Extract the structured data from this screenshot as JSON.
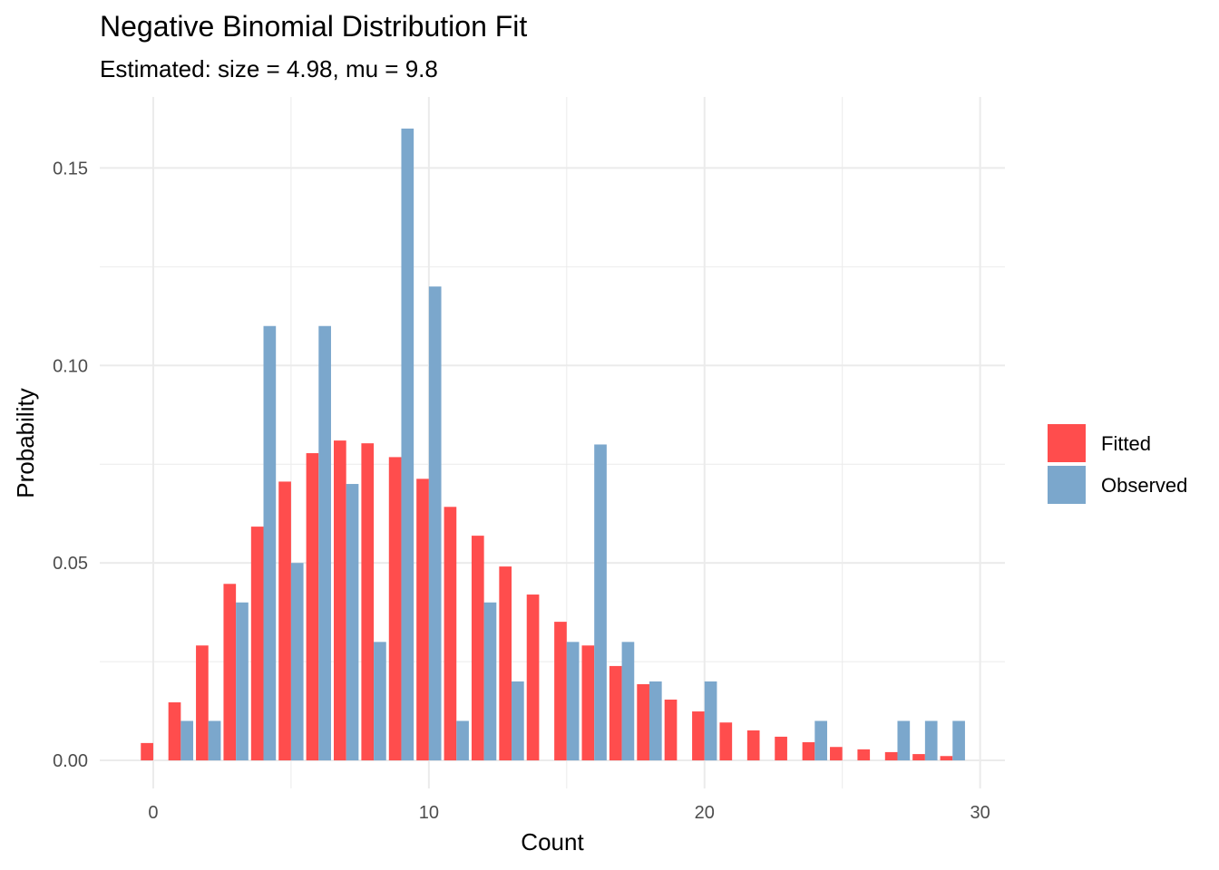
{
  "chart_data": {
    "type": "bar",
    "title": "Negative Binomial Distribution Fit",
    "subtitle": "Estimated: size = 4.98, mu = 9.8",
    "xlabel": "Count",
    "ylabel": "Probability",
    "xlim": [
      -1.94,
      30.9
    ],
    "ylim": [
      -0.0071,
      0.168
    ],
    "x_ticks": [
      0,
      10,
      20,
      30
    ],
    "x_tick_labels": [
      "0",
      "10",
      "20",
      "30"
    ],
    "y_ticks": [
      0,
      0.05,
      0.1,
      0.15
    ],
    "y_tick_labels": [
      "0.00",
      "0.05",
      "0.10",
      "0.15"
    ],
    "grid": true,
    "legend_position": "right",
    "series": [
      {
        "name": "Fitted",
        "color": "#FF4D4D",
        "x": [
          0,
          1,
          2,
          3,
          4,
          5,
          6,
          7,
          8,
          9,
          10,
          11,
          12,
          13,
          14,
          15,
          16,
          17,
          18,
          19,
          20,
          21,
          22,
          23,
          24,
          25,
          26,
          27,
          28,
          29
        ],
        "values": [
          0.0044,
          0.0147,
          0.0291,
          0.0447,
          0.0592,
          0.0706,
          0.0778,
          0.081,
          0.0803,
          0.0768,
          0.0713,
          0.0642,
          0.0569,
          0.0491,
          0.042,
          0.0351,
          0.0291,
          0.0239,
          0.0193,
          0.0154,
          0.0124,
          0.0096,
          0.0076,
          0.006,
          0.0046,
          0.0034,
          0.0028,
          0.0021,
          0.0016,
          0.0011
        ]
      },
      {
        "name": "Observed",
        "color": "#7BA7CC",
        "x": [
          1,
          2,
          3,
          4,
          5,
          6,
          7,
          8,
          9,
          10,
          11,
          12,
          13,
          15,
          16,
          17,
          18,
          20,
          24,
          27,
          28,
          29
        ],
        "values": [
          0.01,
          0.01,
          0.04,
          0.11,
          0.05,
          0.11,
          0.07,
          0.03,
          0.16,
          0.12,
          0.01,
          0.04,
          0.02,
          0.03,
          0.08,
          0.03,
          0.02,
          0.02,
          0.01,
          0.01,
          0.01,
          0.01
        ]
      }
    ]
  }
}
